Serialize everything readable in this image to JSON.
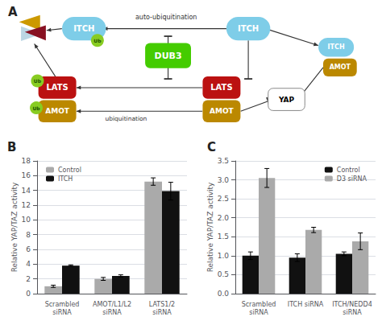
{
  "chart_data": [
    {
      "type": "diagram",
      "title": "A",
      "annotations": [
        "auto-ubiquitination",
        "ubiquitination"
      ],
      "nodes": [
        {
          "name": "ITCH",
          "color": "#7ECDE8"
        },
        {
          "name": "ITCH",
          "color": "#7ECDE8"
        },
        {
          "name": "Ub",
          "color": "#88CC22"
        },
        {
          "name": "DUB3",
          "color": "#44CC00"
        },
        {
          "name": "LATS",
          "color": "#BB1111"
        },
        {
          "name": "AMOT",
          "color": "#BB8800"
        },
        {
          "name": "LATS",
          "color": "#BB1111"
        },
        {
          "name": "AMOT",
          "color": "#BB8800"
        },
        {
          "name": "YAP",
          "color": "#FFFFFF"
        },
        {
          "name": "ITCH",
          "color": "#7ECDE8"
        },
        {
          "name": "AMOT",
          "color": "#BB8800"
        },
        {
          "name": "Ub",
          "color": "#88CC22"
        },
        {
          "name": "Ub",
          "color": "#88CC22"
        },
        {
          "color": "#CC9900"
        },
        {
          "color": "#881122"
        },
        {
          "color": "#AACCDD"
        }
      ]
    },
    {
      "type": "bar",
      "title": "B",
      "categories": [
        "Scrambled\nsiRNA",
        "AMOT/L1/L2\nsiRNA",
        "LATS1/2\nsiRNA"
      ],
      "series": [
        {
          "name": "Control",
          "color": "#AAAAAA",
          "values": [
            1.0,
            2.0,
            15.2
          ],
          "errors": [
            0.15,
            0.2,
            0.5
          ]
        },
        {
          "name": "ITCH",
          "color": "#111111",
          "values": [
            3.8,
            2.4,
            13.9
          ],
          "errors": [
            0.1,
            0.15,
            1.2
          ]
        }
      ],
      "ylabel": "Relative YAP/TAZ activity",
      "ylim": [
        0,
        18
      ],
      "yticks": [
        0,
        2,
        4,
        6,
        8,
        10,
        12,
        14,
        16,
        18
      ],
      "grid": true,
      "legend": "upper left"
    },
    {
      "type": "bar",
      "title": "C",
      "categories": [
        "Scrambled\nsiRNA",
        "ITCH siRNA",
        "ITCH/NEDD4\nsiRNA"
      ],
      "series": [
        {
          "name": "Control",
          "color": "#111111",
          "values": [
            1.0,
            0.95,
            1.05
          ],
          "errors": [
            0.1,
            0.1,
            0.05
          ]
        },
        {
          "name": "D3 siRNA",
          "color": "#AAAAAA",
          "values": [
            3.05,
            1.68,
            1.38
          ],
          "errors": [
            0.25,
            0.07,
            0.22
          ]
        }
      ],
      "ylabel": "Relative YAP/TAZ activity",
      "ylim": [
        0,
        3.5
      ],
      "yticks": [
        {
          "value": 0,
          "label": "0.0"
        },
        0.5,
        {
          "value": 1.0,
          "label": "1.0"
        },
        1.5,
        {
          "value": 2.0,
          "label": "2.0"
        },
        2.5,
        {
          "value": 3.0,
          "label": "3.0"
        },
        3.5
      ],
      "grid": true,
      "legend": "upper right"
    }
  ]
}
